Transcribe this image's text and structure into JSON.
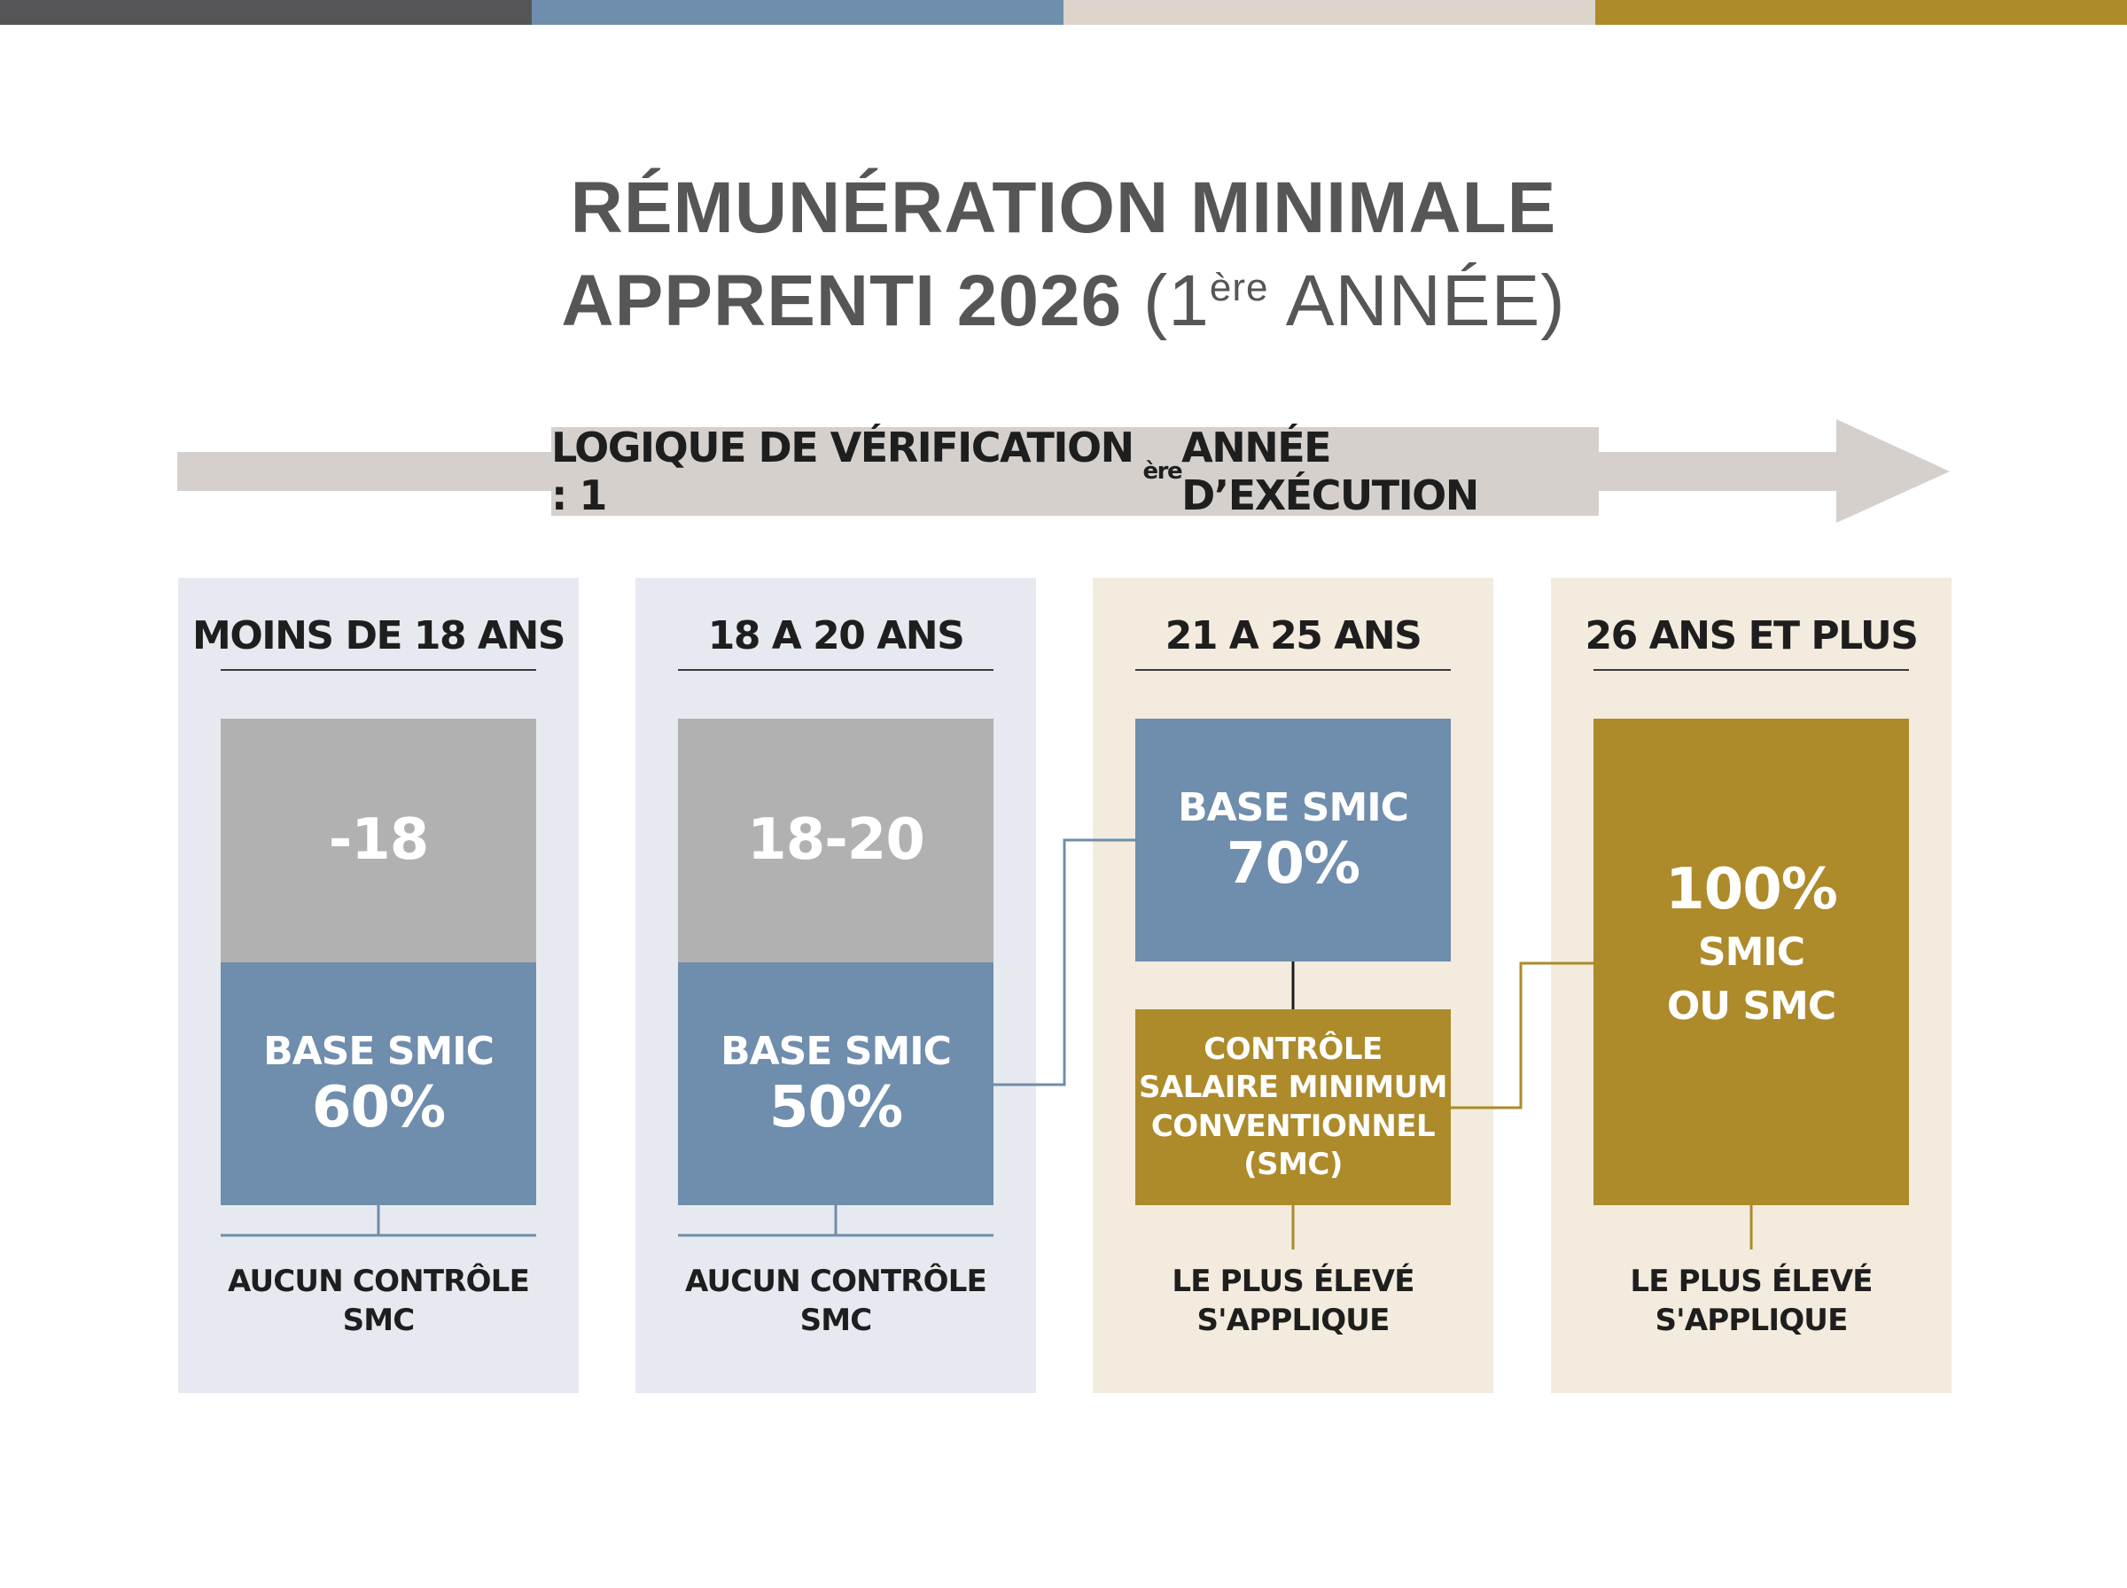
{
  "colors": {
    "dark_gray": "#555557",
    "steel_blue": "#6f8dac",
    "beige": "#ddd4cc",
    "gold": "#ad8a2a",
    "light_gray": "#b1b1b1",
    "panel_blue": "#e6eaf0",
    "panel_cream": "#f3ebdd",
    "arrow_gray": "#d5d0cc"
  },
  "title": {
    "line1": "RÉMUNÉRATION MINIMALE",
    "line2_bold": "APPRENTI 2026",
    "line2_open": " (1",
    "line2_sup": "ère",
    "line2_rest": " ANNÉE)"
  },
  "arrow": {
    "prefix": "LOGIQUE DE VÉRIFICATION : 1",
    "sup": "ère",
    "suffix": " ANNÉE D’EXÉCUTION"
  },
  "columns": [
    {
      "heading": "MOINS DE 18 ANS",
      "top_value": "-18",
      "base_label": "BASE SMIC",
      "base_value": "60%",
      "footer_line1": "AUCUN CONTRÔLE",
      "footer_line2": "SMC"
    },
    {
      "heading": "18 A 20 ANS",
      "top_value": "18-20",
      "base_label": "BASE SMIC",
      "base_value": "50%",
      "footer_line1": "AUCUN CONTRÔLE",
      "footer_line2": "SMC"
    },
    {
      "heading": "21 A 25 ANS",
      "base_label": "BASE SMIC",
      "base_value": "70%",
      "control_lines": [
        "CONTRÔLE",
        "SALAIRE MINIMUM",
        "CONVENTIONNEL",
        "(SMC)"
      ],
      "footer_line1": "LE PLUS ÉLEVÉ",
      "footer_line2": "S'APPLIQUE"
    },
    {
      "heading": "26 ANS ET PLUS",
      "value": "100%",
      "line2": "SMIC",
      "line3": "OU SMC",
      "footer_line1": "LE PLUS ÉLEVÉ",
      "footer_line2": "S'APPLIQUE"
    }
  ]
}
